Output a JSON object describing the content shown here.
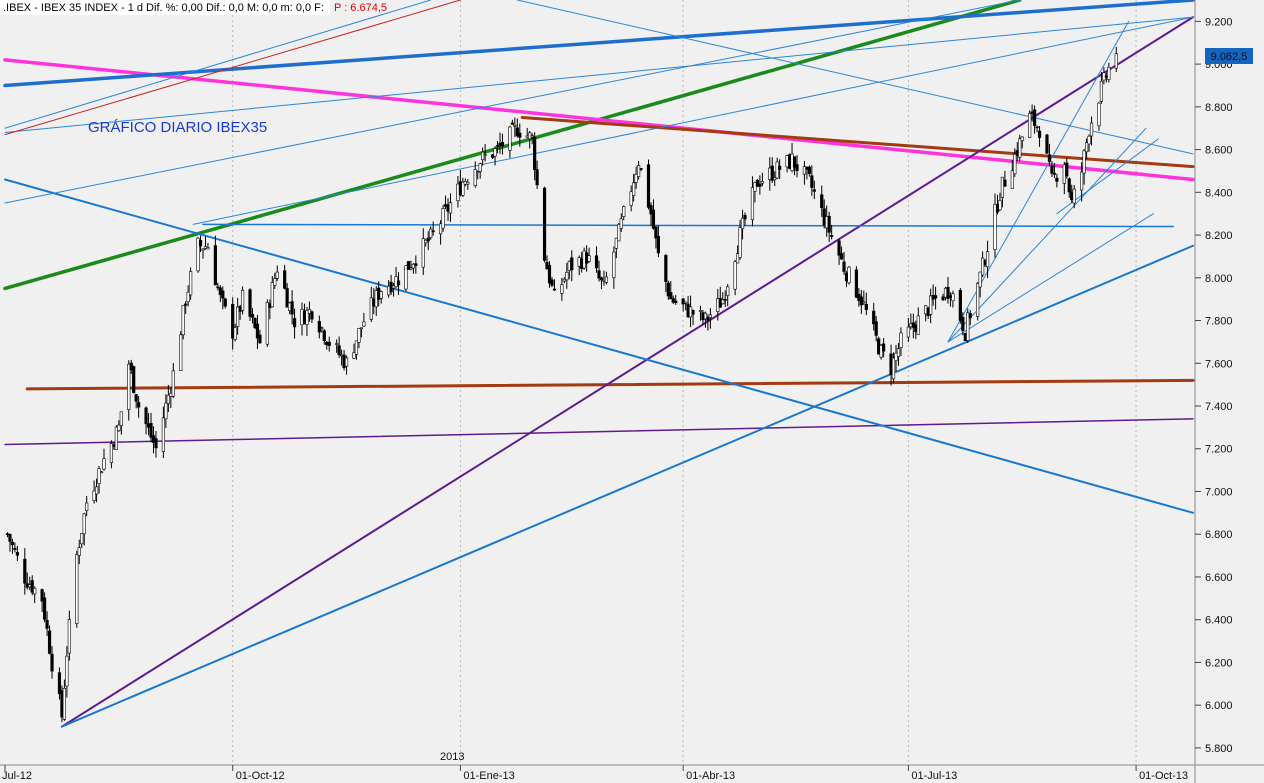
{
  "header": {
    "symbol_text": ".IBEX - IBEX 35 INDEX - 1 d Dif. %: 0,00 Dif.: 0,0 M: 0,0 m: 0,0 F:",
    "price_text": "P : 6.674,5"
  },
  "chart_data": {
    "type": "candlestick",
    "title": "GRÁFICO DIARIO IBEX35",
    "last_value_label": "9.062,5",
    "year_label": "2013",
    "y_ticks": [
      "9.200",
      "9.000",
      "8.800",
      "8.600",
      "8.400",
      "8.200",
      "8.000",
      "7.800",
      "7.600",
      "7.400",
      "7.200",
      "7.000",
      "6.800",
      "6.600",
      "6.400",
      "6.200",
      "6.000",
      "5.800"
    ],
    "x_ticks": [
      "Jul-12",
      "01-Oct-12",
      "01-Ene-13",
      "01-Abr-13",
      "01-Jul-13",
      "01-Oct-13"
    ],
    "ylim": [
      5720,
      9300
    ],
    "xlim": [
      "2012-07-01",
      "2013-10-24"
    ],
    "grid": "vertical dotted at x ticks",
    "colors": {
      "candles": "#000000",
      "green": "#1a8a1a",
      "magenta": "#ff33dd",
      "brown": "#a33a10",
      "purple": "#5e1a8e",
      "blue_thick": "#1e6ecc",
      "blue": "#1878d0",
      "blue_thin": "#2a86d8",
      "red": "#cc2020",
      "background": "#f0f0f0"
    },
    "price_path": [
      [
        "2012-07-02",
        6800
      ],
      [
        "2012-07-09",
        6600
      ],
      [
        "2012-07-16",
        6500
      ],
      [
        "2012-07-20",
        6200
      ],
      [
        "2012-07-24",
        5950
      ],
      [
        "2012-07-26",
        6250
      ],
      [
        "2012-07-30",
        6700
      ],
      [
        "2012-08-03",
        6950
      ],
      [
        "2012-08-10",
        7150
      ],
      [
        "2012-08-16",
        7300
      ],
      [
        "2012-08-20",
        7600
      ],
      [
        "2012-08-24",
        7400
      ],
      [
        "2012-08-31",
        7200
      ],
      [
        "2012-09-07",
        7550
      ],
      [
        "2012-09-12",
        7900
      ],
      [
        "2012-09-17",
        8150
      ],
      [
        "2012-09-21",
        8150
      ],
      [
        "2012-09-26",
        7900
      ],
      [
        "2012-10-01",
        7750
      ],
      [
        "2012-10-05",
        7900
      ],
      [
        "2012-10-12",
        7700
      ],
      [
        "2012-10-19",
        8050
      ],
      [
        "2012-10-26",
        7800
      ],
      [
        "2012-11-02",
        7850
      ],
      [
        "2012-11-09",
        7700
      ],
      [
        "2012-11-16",
        7600
      ],
      [
        "2012-11-23",
        7800
      ],
      [
        "2012-11-30",
        7950
      ],
      [
        "2012-12-07",
        8000
      ],
      [
        "2012-12-14",
        8100
      ],
      [
        "2012-12-21",
        8200
      ],
      [
        "2013-01-02",
        8450
      ],
      [
        "2013-01-09",
        8550
      ],
      [
        "2013-01-16",
        8600
      ],
      [
        "2013-01-24",
        8700
      ],
      [
        "2013-01-30",
        8650
      ],
      [
        "2013-02-04",
        8100
      ],
      [
        "2013-02-08",
        7900
      ],
      [
        "2013-02-14",
        8050
      ],
      [
        "2013-02-21",
        8100
      ],
      [
        "2013-02-28",
        7950
      ],
      [
        "2013-03-07",
        8250
      ],
      [
        "2013-03-14",
        8550
      ],
      [
        "2013-03-19",
        8300
      ],
      [
        "2013-03-22",
        8100
      ],
      [
        "2013-03-27",
        7900
      ],
      [
        "2013-04-03",
        7850
      ],
      [
        "2013-04-10",
        7800
      ],
      [
        "2013-04-17",
        7900
      ],
      [
        "2013-04-24",
        8200
      ],
      [
        "2013-05-01",
        8450
      ],
      [
        "2013-05-08",
        8500
      ],
      [
        "2013-05-15",
        8550
      ],
      [
        "2013-05-22",
        8450
      ],
      [
        "2013-05-29",
        8250
      ],
      [
        "2013-06-05",
        8050
      ],
      [
        "2013-06-12",
        7900
      ],
      [
        "2013-06-20",
        7650
      ],
      [
        "2013-06-24",
        7580
      ],
      [
        "2013-06-28",
        7700
      ],
      [
        "2013-07-05",
        7800
      ],
      [
        "2013-07-12",
        7900
      ],
      [
        "2013-07-18",
        7950
      ],
      [
        "2013-07-24",
        7750
      ],
      [
        "2013-07-31",
        8050
      ],
      [
        "2013-08-07",
        8400
      ],
      [
        "2013-08-14",
        8600
      ],
      [
        "2013-08-19",
        8750
      ],
      [
        "2013-08-23",
        8700
      ],
      [
        "2013-08-28",
        8450
      ],
      [
        "2013-09-02",
        8550
      ],
      [
        "2013-09-05",
        8350
      ],
      [
        "2013-09-09",
        8500
      ],
      [
        "2013-09-12",
        8700
      ],
      [
        "2013-09-16",
        8850
      ],
      [
        "2013-09-19",
        8950
      ],
      [
        "2013-09-23",
        9062.5
      ]
    ],
    "trendlines": [
      {
        "color": "green",
        "width": 3.5,
        "from": [
          "2012-07-01",
          7950
        ],
        "to": [
          "2013-08-15",
          9300
        ]
      },
      {
        "color": "magenta",
        "width": 3.5,
        "from": [
          "2012-07-01",
          9020
        ],
        "to": [
          "2013-10-24",
          8460
        ]
      },
      {
        "color": "brown",
        "width": 3,
        "from": [
          "2012-07-10",
          7480
        ],
        "to": [
          "2013-10-24",
          7520
        ]
      },
      {
        "color": "brown",
        "width": 3,
        "from": [
          "2013-01-26",
          8750
        ],
        "to": [
          "2013-10-24",
          8520
        ]
      },
      {
        "color": "purple",
        "width": 2,
        "from": [
          "2012-07-24",
          5900
        ],
        "to": [
          "2013-10-24",
          9220
        ]
      },
      {
        "color": "purple",
        "width": 1.5,
        "from": [
          "2012-07-01",
          7220
        ],
        "to": [
          "2013-10-24",
          7340
        ]
      },
      {
        "color": "blue_thick",
        "width": 3.5,
        "from": [
          "2012-07-01",
          8900
        ],
        "to": [
          "2013-10-24",
          9300
        ]
      },
      {
        "color": "blue",
        "width": 2,
        "from": [
          "2012-07-24",
          5900
        ],
        "to": [
          "2013-10-24",
          8150
        ]
      },
      {
        "color": "blue",
        "width": 2,
        "from": [
          "2012-07-01",
          8460
        ],
        "to": [
          "2013-10-24",
          6900
        ]
      },
      {
        "color": "blue",
        "width": 1.5,
        "from": [
          "2012-09-19",
          8250
        ],
        "to": [
          "2013-10-16",
          8240
        ]
      },
      {
        "color": "blue_thin",
        "width": 1,
        "from": [
          "2012-07-01",
          8350
        ],
        "to": [
          "2013-08-15",
          9300
        ]
      },
      {
        "color": "blue_thin",
        "width": 1,
        "from": [
          "2012-07-01",
          8680
        ],
        "to": [
          "2013-10-24",
          9220
        ]
      },
      {
        "color": "blue_thin",
        "width": 1,
        "from": [
          "2012-09-15",
          8250
        ],
        "to": [
          "2013-10-24",
          9220
        ]
      },
      {
        "color": "blue_thin",
        "width": 1,
        "from": [
          "2013-01-24",
          9300
        ],
        "to": [
          "2013-10-24",
          8580
        ]
      },
      {
        "color": "blue_thin",
        "width": 1,
        "from": [
          "2012-07-01",
          8700
        ],
        "to": [
          "2012-12-20",
          9300
        ]
      },
      {
        "color": "blue_thin",
        "width": 1,
        "from": [
          "2013-07-17",
          7700
        ],
        "to": [
          "2013-09-28",
          9200
        ]
      },
      {
        "color": "blue_thin",
        "width": 1,
        "from": [
          "2013-07-17",
          7700
        ],
        "to": [
          "2013-10-05",
          8700
        ]
      },
      {
        "color": "blue_thin",
        "width": 1,
        "from": [
          "2013-07-17",
          7700
        ],
        "to": [
          "2013-10-08",
          8300
        ]
      },
      {
        "color": "blue_thin",
        "width": 1,
        "from": [
          "2013-08-30",
          8300
        ],
        "to": [
          "2013-10-10",
          8650
        ]
      },
      {
        "color": "red",
        "width": 1,
        "from": [
          "2012-07-01",
          8670
        ],
        "to": [
          "2013-01-01",
          9300
        ]
      }
    ]
  }
}
